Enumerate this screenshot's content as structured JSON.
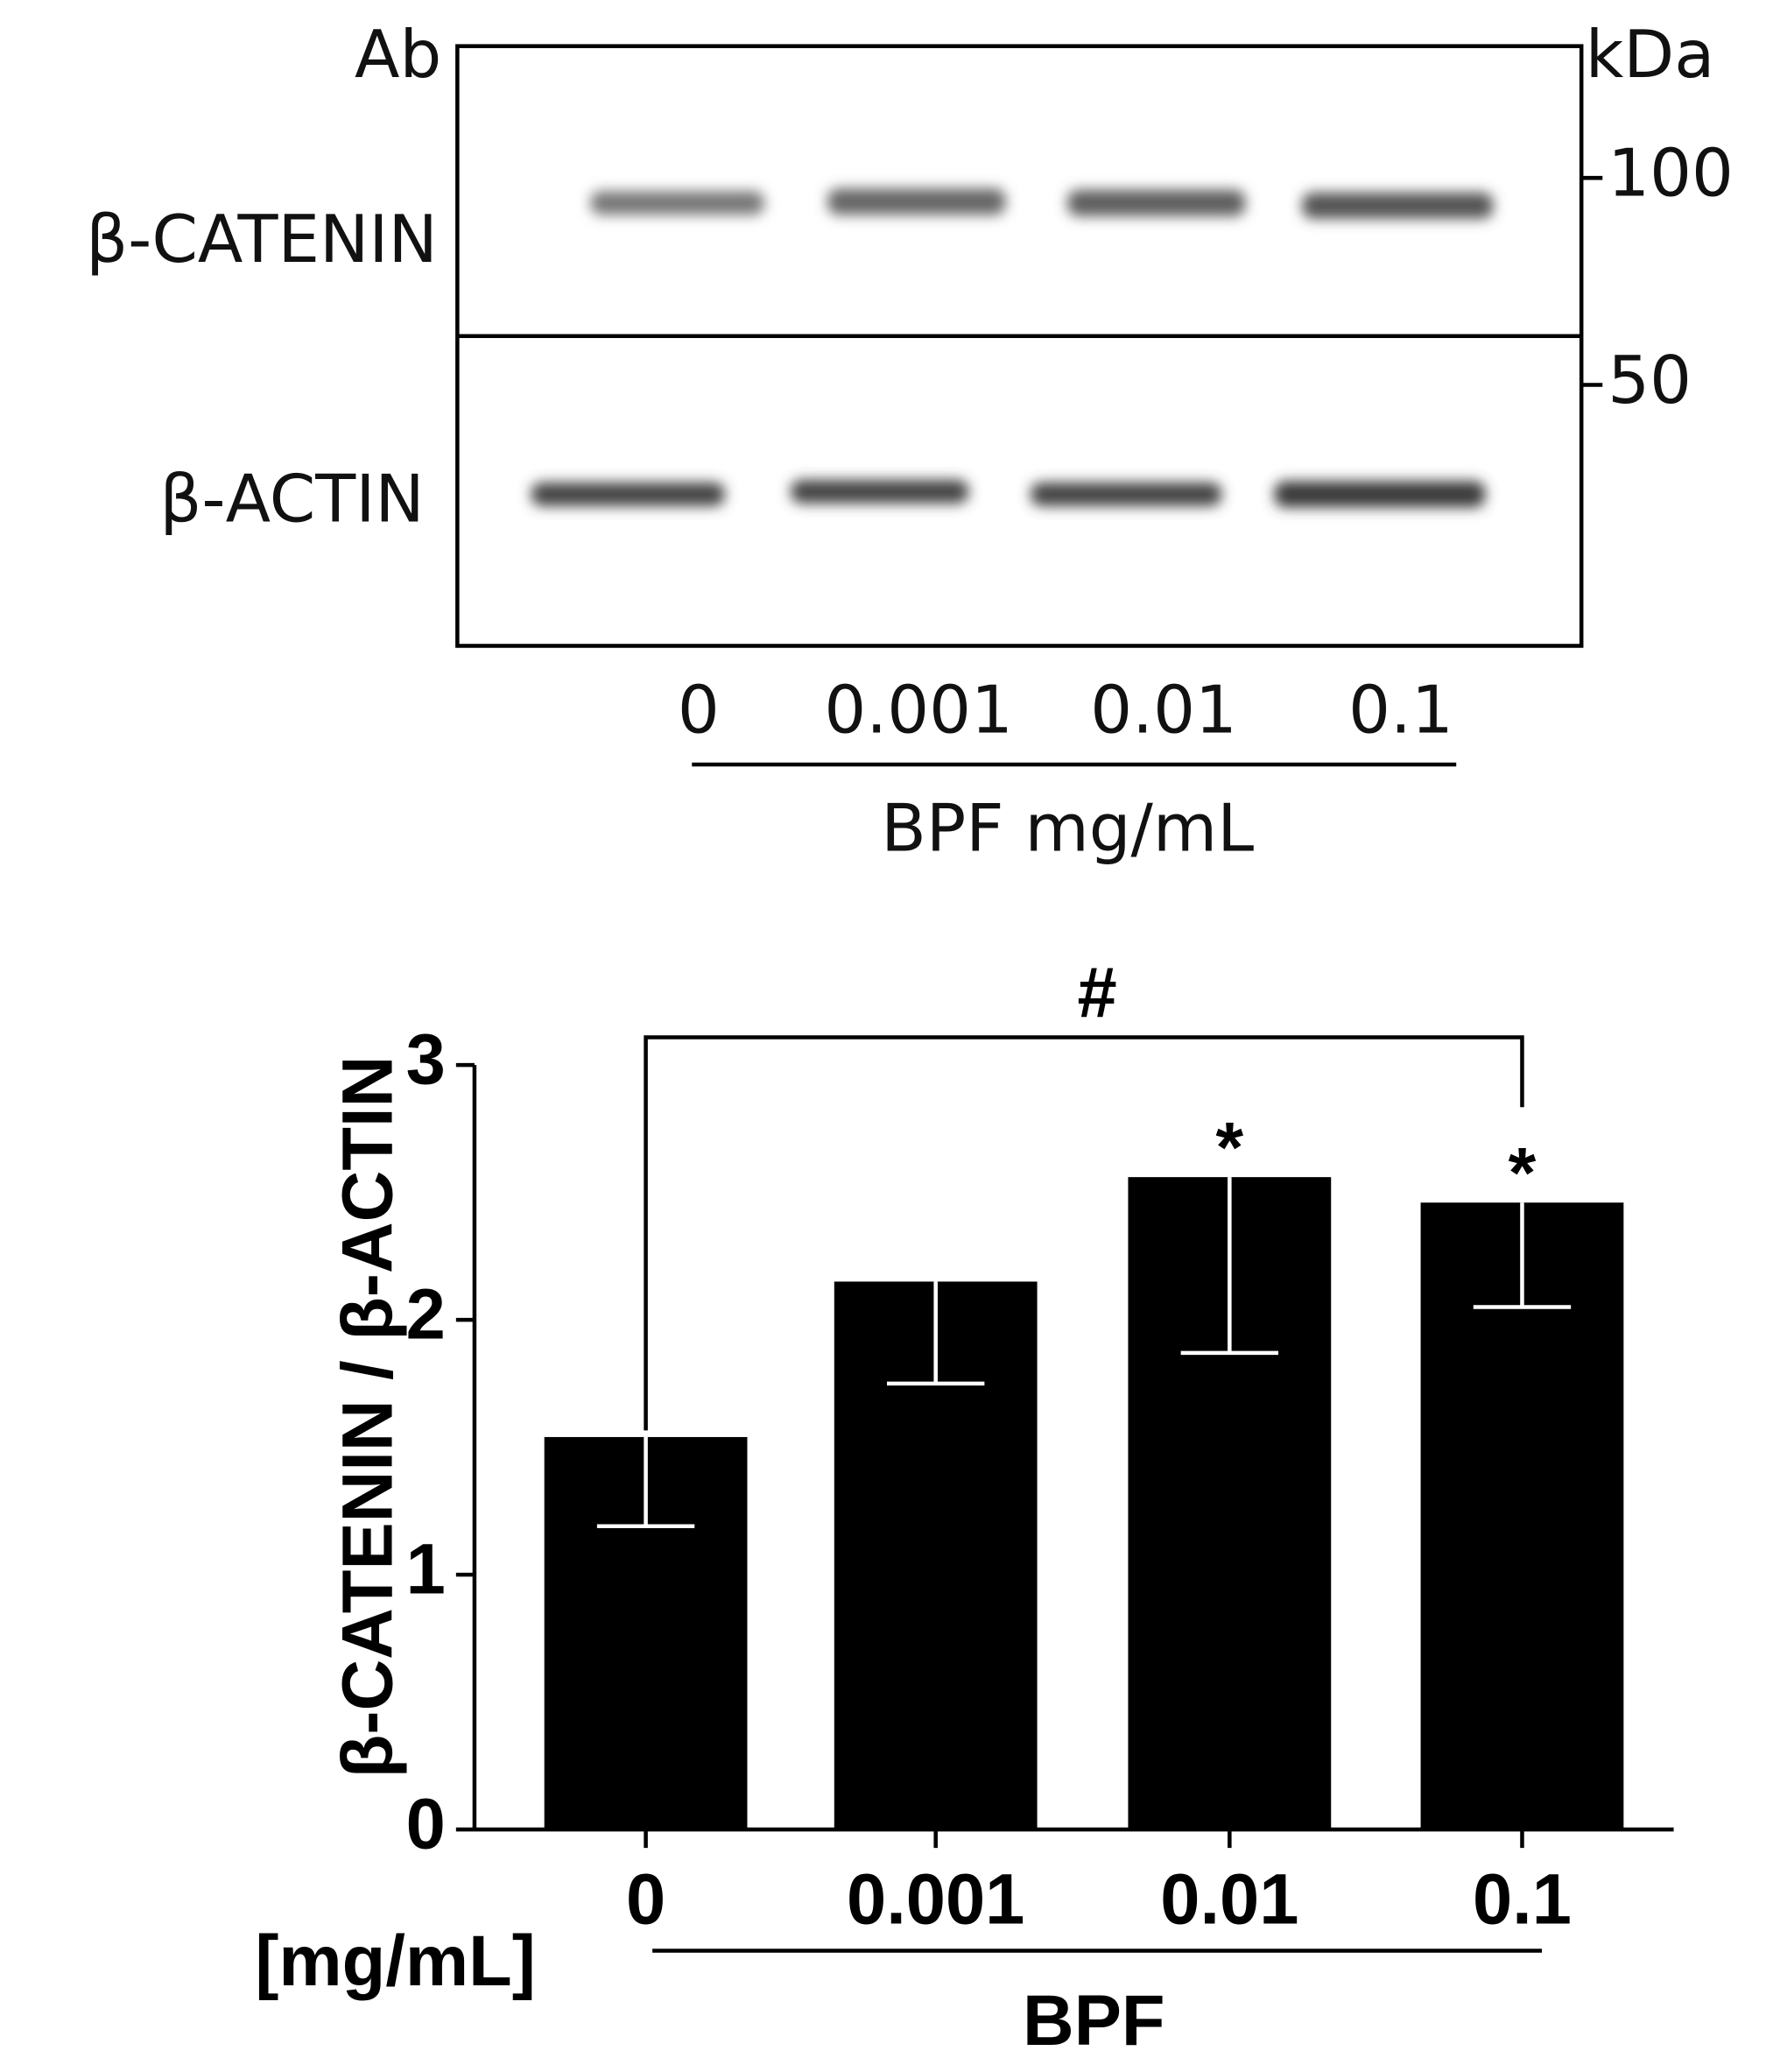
{
  "blot": {
    "antibody_header": "Ab",
    "marker_header": "kDa",
    "rows": [
      "β-CATENIN",
      "β-ACTIN"
    ],
    "markers": [
      "100",
      "50"
    ],
    "lanes": [
      "0",
      "0.001",
      "0.01",
      "0.1"
    ],
    "lane_axis_label": "BPF mg/mL"
  },
  "chart_data": {
    "type": "bar",
    "ylabel": "β-CATENIN / β-ACTIN",
    "unit_label": "[mg/mL]",
    "xlabel": "BPF",
    "categories": [
      "0",
      "0.001",
      "0.01",
      "0.1"
    ],
    "values": [
      1.54,
      2.15,
      2.56,
      2.46
    ],
    "errors": [
      0.35,
      0.4,
      0.69,
      0.41
    ],
    "color": "#000000",
    "error_color": "#ffffff",
    "ylim": [
      0,
      3
    ],
    "yticks": [
      0,
      1,
      2,
      3
    ],
    "annotations": [
      {
        "text": "#",
        "from": "0",
        "to": "0.1"
      },
      {
        "text": "*",
        "at": "0.01"
      },
      {
        "text": "*",
        "at": "0.1"
      }
    ]
  }
}
